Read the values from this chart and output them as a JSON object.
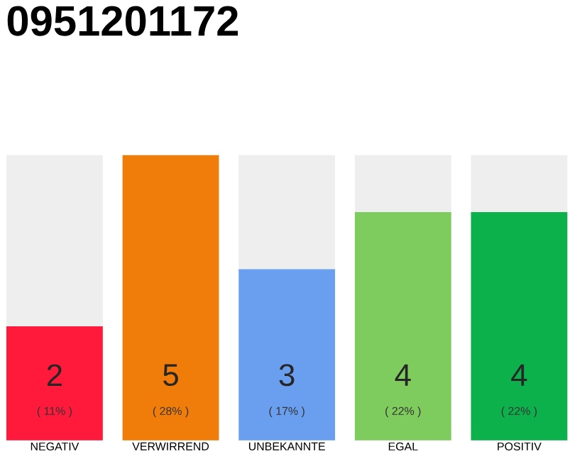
{
  "chart_data": {
    "type": "bar",
    "title": "0951201172",
    "categories": [
      "NEGATIV",
      "VERWIRREND",
      "UNBEKANNTE",
      "EGAL",
      "POSITIV"
    ],
    "values": [
      2,
      5,
      3,
      4,
      4
    ],
    "colors": [
      "#ff1a3c",
      "#f07d0a",
      "#6a9ff0",
      "#7ecb5e",
      "#0db14b"
    ],
    "ylim": [
      0,
      5
    ],
    "tick_labels": "x",
    "data_labels": true,
    "annotations": [
      "( 11% )",
      "( 28% )",
      "( 17% )",
      "( 22% )",
      "( 22% )"
    ]
  }
}
